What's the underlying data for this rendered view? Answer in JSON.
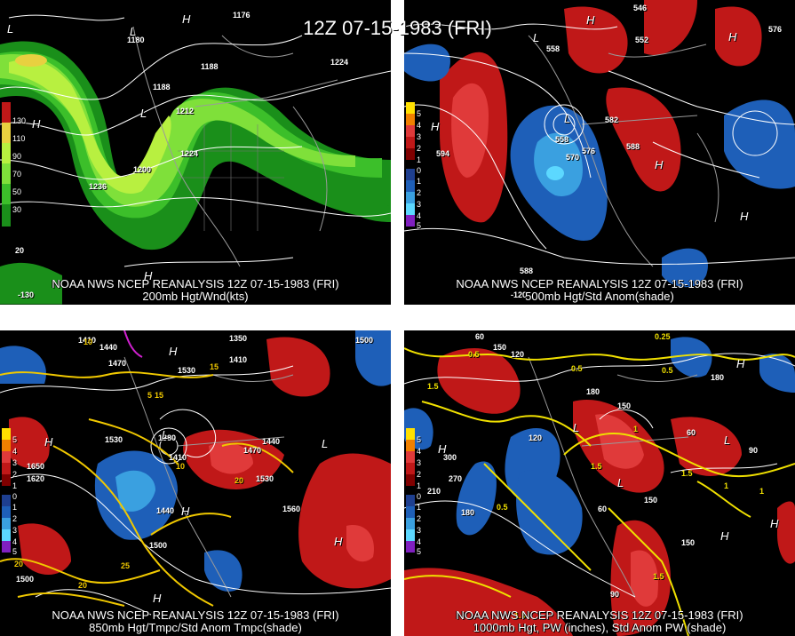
{
  "title": "12Z 07-15-1983 (FRI)",
  "panels": {
    "p1": {
      "caption1": "NOAA NWS NCEP REANALYSIS 12Z 07-15-1983 (FRI)",
      "caption2": "200mb Hgt/Wnd(kts)",
      "legend": [
        "130",
        "110",
        "90",
        "70",
        "50",
        "30"
      ],
      "contours": [
        "1176",
        "1180",
        "1188",
        "1188",
        "1200",
        "1212",
        "1224",
        "1236",
        "1224"
      ],
      "lon_labels": [
        "-130",
        "20"
      ]
    },
    "p2": {
      "caption1": "NOAA NWS NCEP REANALYSIS 12Z 07-15-1983 (FRI)",
      "caption2": "500mb Hgt/Std Anom(shade)",
      "legend": [
        "5",
        "4",
        "3",
        "2",
        "1",
        "0",
        "1",
        "2",
        "3",
        "4",
        "5"
      ],
      "contours": [
        "546",
        "552",
        "558",
        "558",
        "570",
        "576",
        "576",
        "582",
        "588",
        "594",
        "588"
      ],
      "lon_labels": [
        "-120"
      ]
    },
    "p3": {
      "caption1": "NOAA NWS NCEP REANALYSIS 12Z 07-15-1983 (FRI)",
      "caption2": "850mb Hgt/Tmpc/Std Anom Tmpc(shade)",
      "legend": [
        "5",
        "4",
        "3",
        "2",
        "1",
        "0",
        "1",
        "2",
        "3",
        "4",
        "5"
      ],
      "contours": [
        "1410",
        "1440",
        "1470",
        "1350",
        "1410",
        "1500",
        "1530",
        "1650",
        "1620",
        "1530",
        "1410",
        "1440",
        "1470",
        "1530",
        "1560",
        "1440",
        "1500",
        "1500",
        "1380"
      ],
      "temps": [
        "10",
        "5",
        "15",
        "20",
        "25",
        "20",
        "10",
        "20",
        "15"
      ]
    },
    "p4": {
      "caption1": "NOAA NWS NCEP REANALYSIS 12Z 07-15-1983 (FRI)",
      "caption2": "1000mb Hgt, PW (inches), Std Anom PW (shade)",
      "legend": [
        "5",
        "4",
        "3",
        "2",
        "1",
        "0",
        "1",
        "2",
        "3",
        "4",
        "5"
      ],
      "contours": [
        "60",
        "150",
        "120",
        "180",
        "150",
        "180",
        "120",
        "60",
        "90",
        "300",
        "270",
        "210",
        "180",
        "150",
        "90",
        "60",
        "150"
      ],
      "pw": [
        "1.5",
        "0.5",
        "0.5",
        "1.5",
        "1",
        "0.5",
        "1.5",
        "1",
        "1.5",
        "0.25",
        "0.5",
        "1.5",
        "1"
      ]
    }
  },
  "highs_lows": {
    "p1": [
      "L",
      "L",
      "H",
      "H",
      "L",
      "H"
    ],
    "p2": [
      "L",
      "H",
      "L",
      "H",
      "H",
      "H",
      "H"
    ],
    "p3": [
      "H",
      "L",
      "H",
      "L",
      "H",
      "H",
      "H"
    ],
    "p4": [
      "L",
      "H",
      "L",
      "L",
      "H",
      "H",
      "H"
    ]
  }
}
